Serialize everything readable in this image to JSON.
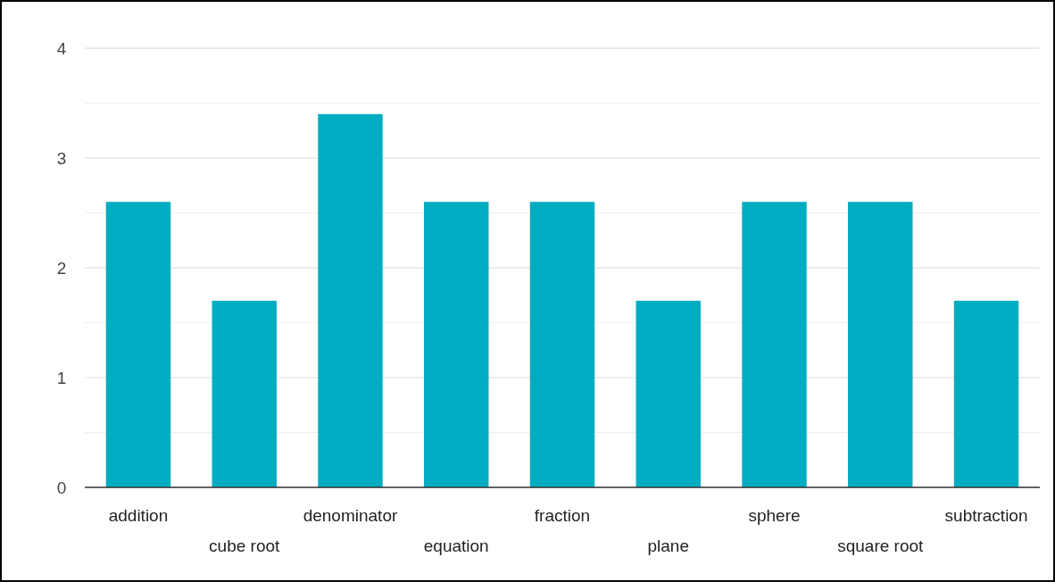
{
  "chart_data": {
    "type": "bar",
    "categories": [
      "addition",
      "cube root",
      "denominator",
      "equation",
      "fraction",
      "plane",
      "sphere",
      "square root",
      "subtraction"
    ],
    "values": [
      2.6,
      1.7,
      3.4,
      2.6,
      2.6,
      1.7,
      2.6,
      2.6,
      1.7
    ],
    "color": "#00acc1",
    "ylim": [
      0,
      4
    ],
    "yticks": [
      0,
      {
        "value": 0.5,
        "label": null
      },
      1,
      {
        "value": 1.5,
        "label": null
      },
      2,
      {
        "value": 2.5,
        "label": null
      },
      3,
      {
        "value": 3.5,
        "label": null
      },
      4
    ],
    "grid": true
  }
}
